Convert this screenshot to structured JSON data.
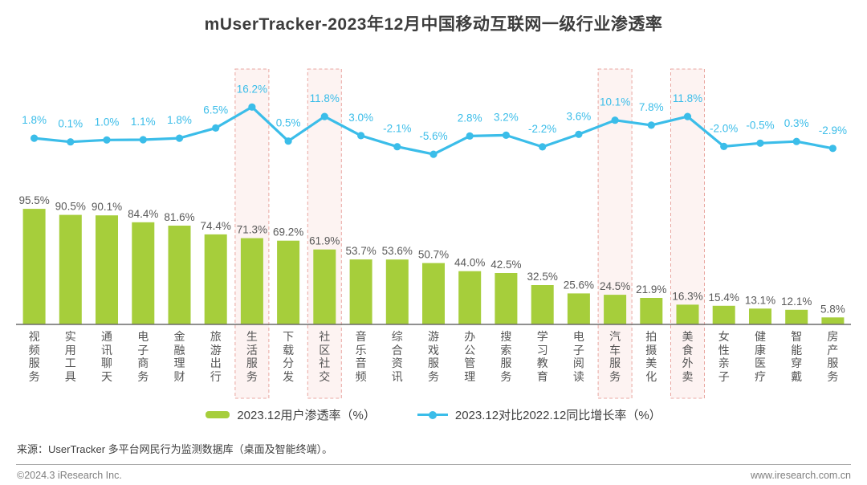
{
  "title": "mUserTracker-2023年12月中国移动互联网一级行业渗透率",
  "colors": {
    "bar": "#a6ce3b",
    "line": "#3bbde9",
    "bar_label": "#595959",
    "category_label": "#555555",
    "highlight_bg": "#fdf3f2",
    "highlight_border": "#e9a7a1",
    "axis": "#6b6b6b"
  },
  "chart_data": {
    "type": "bar",
    "title": "mUserTracker-2023年12月中国移动互联网一级行业渗透率",
    "categories": [
      "视频服务",
      "实用工具",
      "通讯聊天",
      "电子商务",
      "金融理财",
      "旅游出行",
      "生活服务",
      "下载分发",
      "社区社交",
      "音乐音频",
      "综合资讯",
      "游戏服务",
      "办公管理",
      "搜索服务",
      "学习教育",
      "电子阅读",
      "汽车服务",
      "拍摄美化",
      "美食外卖",
      "女性亲子",
      "健康医疗",
      "智能穿戴",
      "房产服务"
    ],
    "series": [
      {
        "name": "2023.12用户渗透率（%）",
        "type": "bar",
        "values": [
          95.5,
          90.5,
          90.1,
          84.4,
          81.6,
          74.4,
          71.3,
          69.2,
          61.9,
          53.7,
          53.6,
          50.7,
          44.0,
          42.5,
          32.5,
          25.6,
          24.5,
          21.9,
          16.3,
          15.4,
          13.1,
          12.1,
          5.8
        ]
      },
      {
        "name": "2023.12对比2022.12同比增长率（%）",
        "type": "line",
        "values": [
          1.8,
          0.1,
          1.0,
          1.1,
          1.8,
          6.5,
          16.2,
          0.5,
          11.8,
          3.0,
          -2.1,
          -5.6,
          2.8,
          3.2,
          -2.2,
          3.6,
          10.1,
          7.8,
          11.8,
          -2.0,
          -0.5,
          0.3,
          -2.9
        ]
      }
    ],
    "highlight_indices": [
      6,
      8,
      16,
      18
    ],
    "highlighted_categories": [
      "生活服务",
      "社区社交",
      "汽车服务",
      "美食外卖"
    ],
    "bar_value_range": [
      0,
      100
    ],
    "line_value_range": [
      -5.6,
      16.2
    ],
    "grid": false,
    "legend_position": "bottom",
    "value_label_format": "one-decimal-percent"
  },
  "legend": {
    "bar_label": "2023.12用户渗透率（%）",
    "line_label": "2023.12对比2022.12同比增长率（%）"
  },
  "footer": {
    "source": "来源：UserTracker 多平台网民行为监测数据库（桌面及智能终端）。",
    "copyright": "©2024.3 iResearch Inc.",
    "website": "www.iresearch.com.cn"
  }
}
